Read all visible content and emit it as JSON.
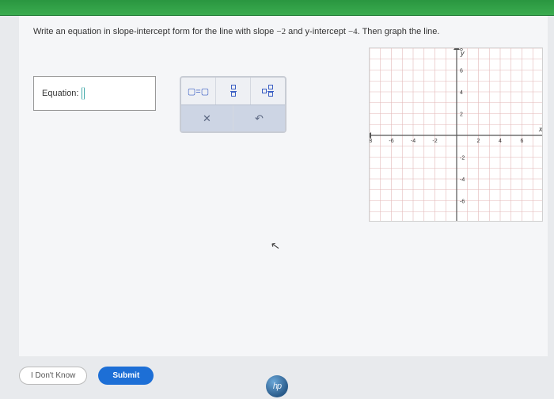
{
  "prompt": {
    "pre": "Write an equation in slope-intercept form for the line with slope ",
    "slope": "−2",
    "mid": " and y-intercept ",
    "intercept": "−4",
    "post": ". Then graph the line."
  },
  "equation": {
    "label": "Equation:"
  },
  "toolbox": {
    "eq_tool": "▢=▢",
    "clear": "✕",
    "undo": "↶"
  },
  "buttons": {
    "dont_know": "I Don't Know",
    "submit": "Submit"
  },
  "logo": "hp",
  "graph": {
    "size": 220,
    "xlim": [
      -8,
      8
    ],
    "ylim": [
      -8,
      8
    ],
    "tick_step": 2,
    "grid_color": "#e3b8b8",
    "axis_color": "#555",
    "bg": "#ffffff",
    "x_label": "x",
    "y_label": "y",
    "label_color": "#333",
    "tick_fontsize": 7
  }
}
